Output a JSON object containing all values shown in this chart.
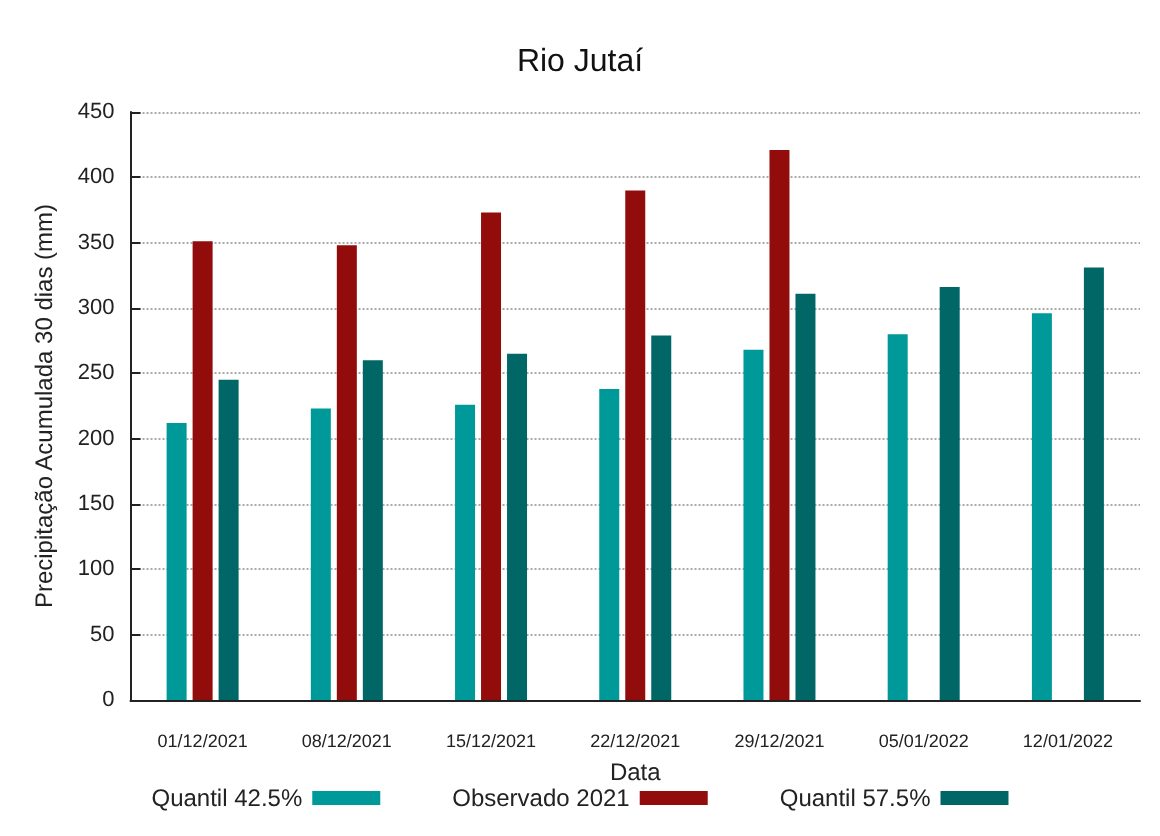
{
  "chart_data": {
    "type": "bar",
    "title": "Rio Jutaí",
    "xlabel": "Data",
    "ylabel": "Precipitação Acumulada 30 dias (mm)",
    "categories": [
      "01/12/2021",
      "08/12/2021",
      "15/12/2021",
      "22/12/2021",
      "29/12/2021",
      "05/01/2022",
      "12/01/2022"
    ],
    "series": [
      {
        "name": "Quantil 42.5%",
        "color": "#009999",
        "values": [
          212,
          223,
          226,
          238,
          268,
          280,
          296
        ]
      },
      {
        "name": "Observado 2021",
        "color": "#930c0c",
        "values": [
          351,
          348,
          373,
          390,
          421,
          null,
          null
        ]
      },
      {
        "name": "Quantil 57.5%",
        "color": "#006666",
        "values": [
          245,
          260,
          265,
          279,
          311,
          316,
          331
        ]
      }
    ],
    "ylim": [
      0,
      450
    ],
    "yticks": [
      0,
      50,
      100,
      150,
      200,
      250,
      300,
      350,
      400,
      450
    ],
    "grid": "y",
    "legend": "bottom"
  }
}
